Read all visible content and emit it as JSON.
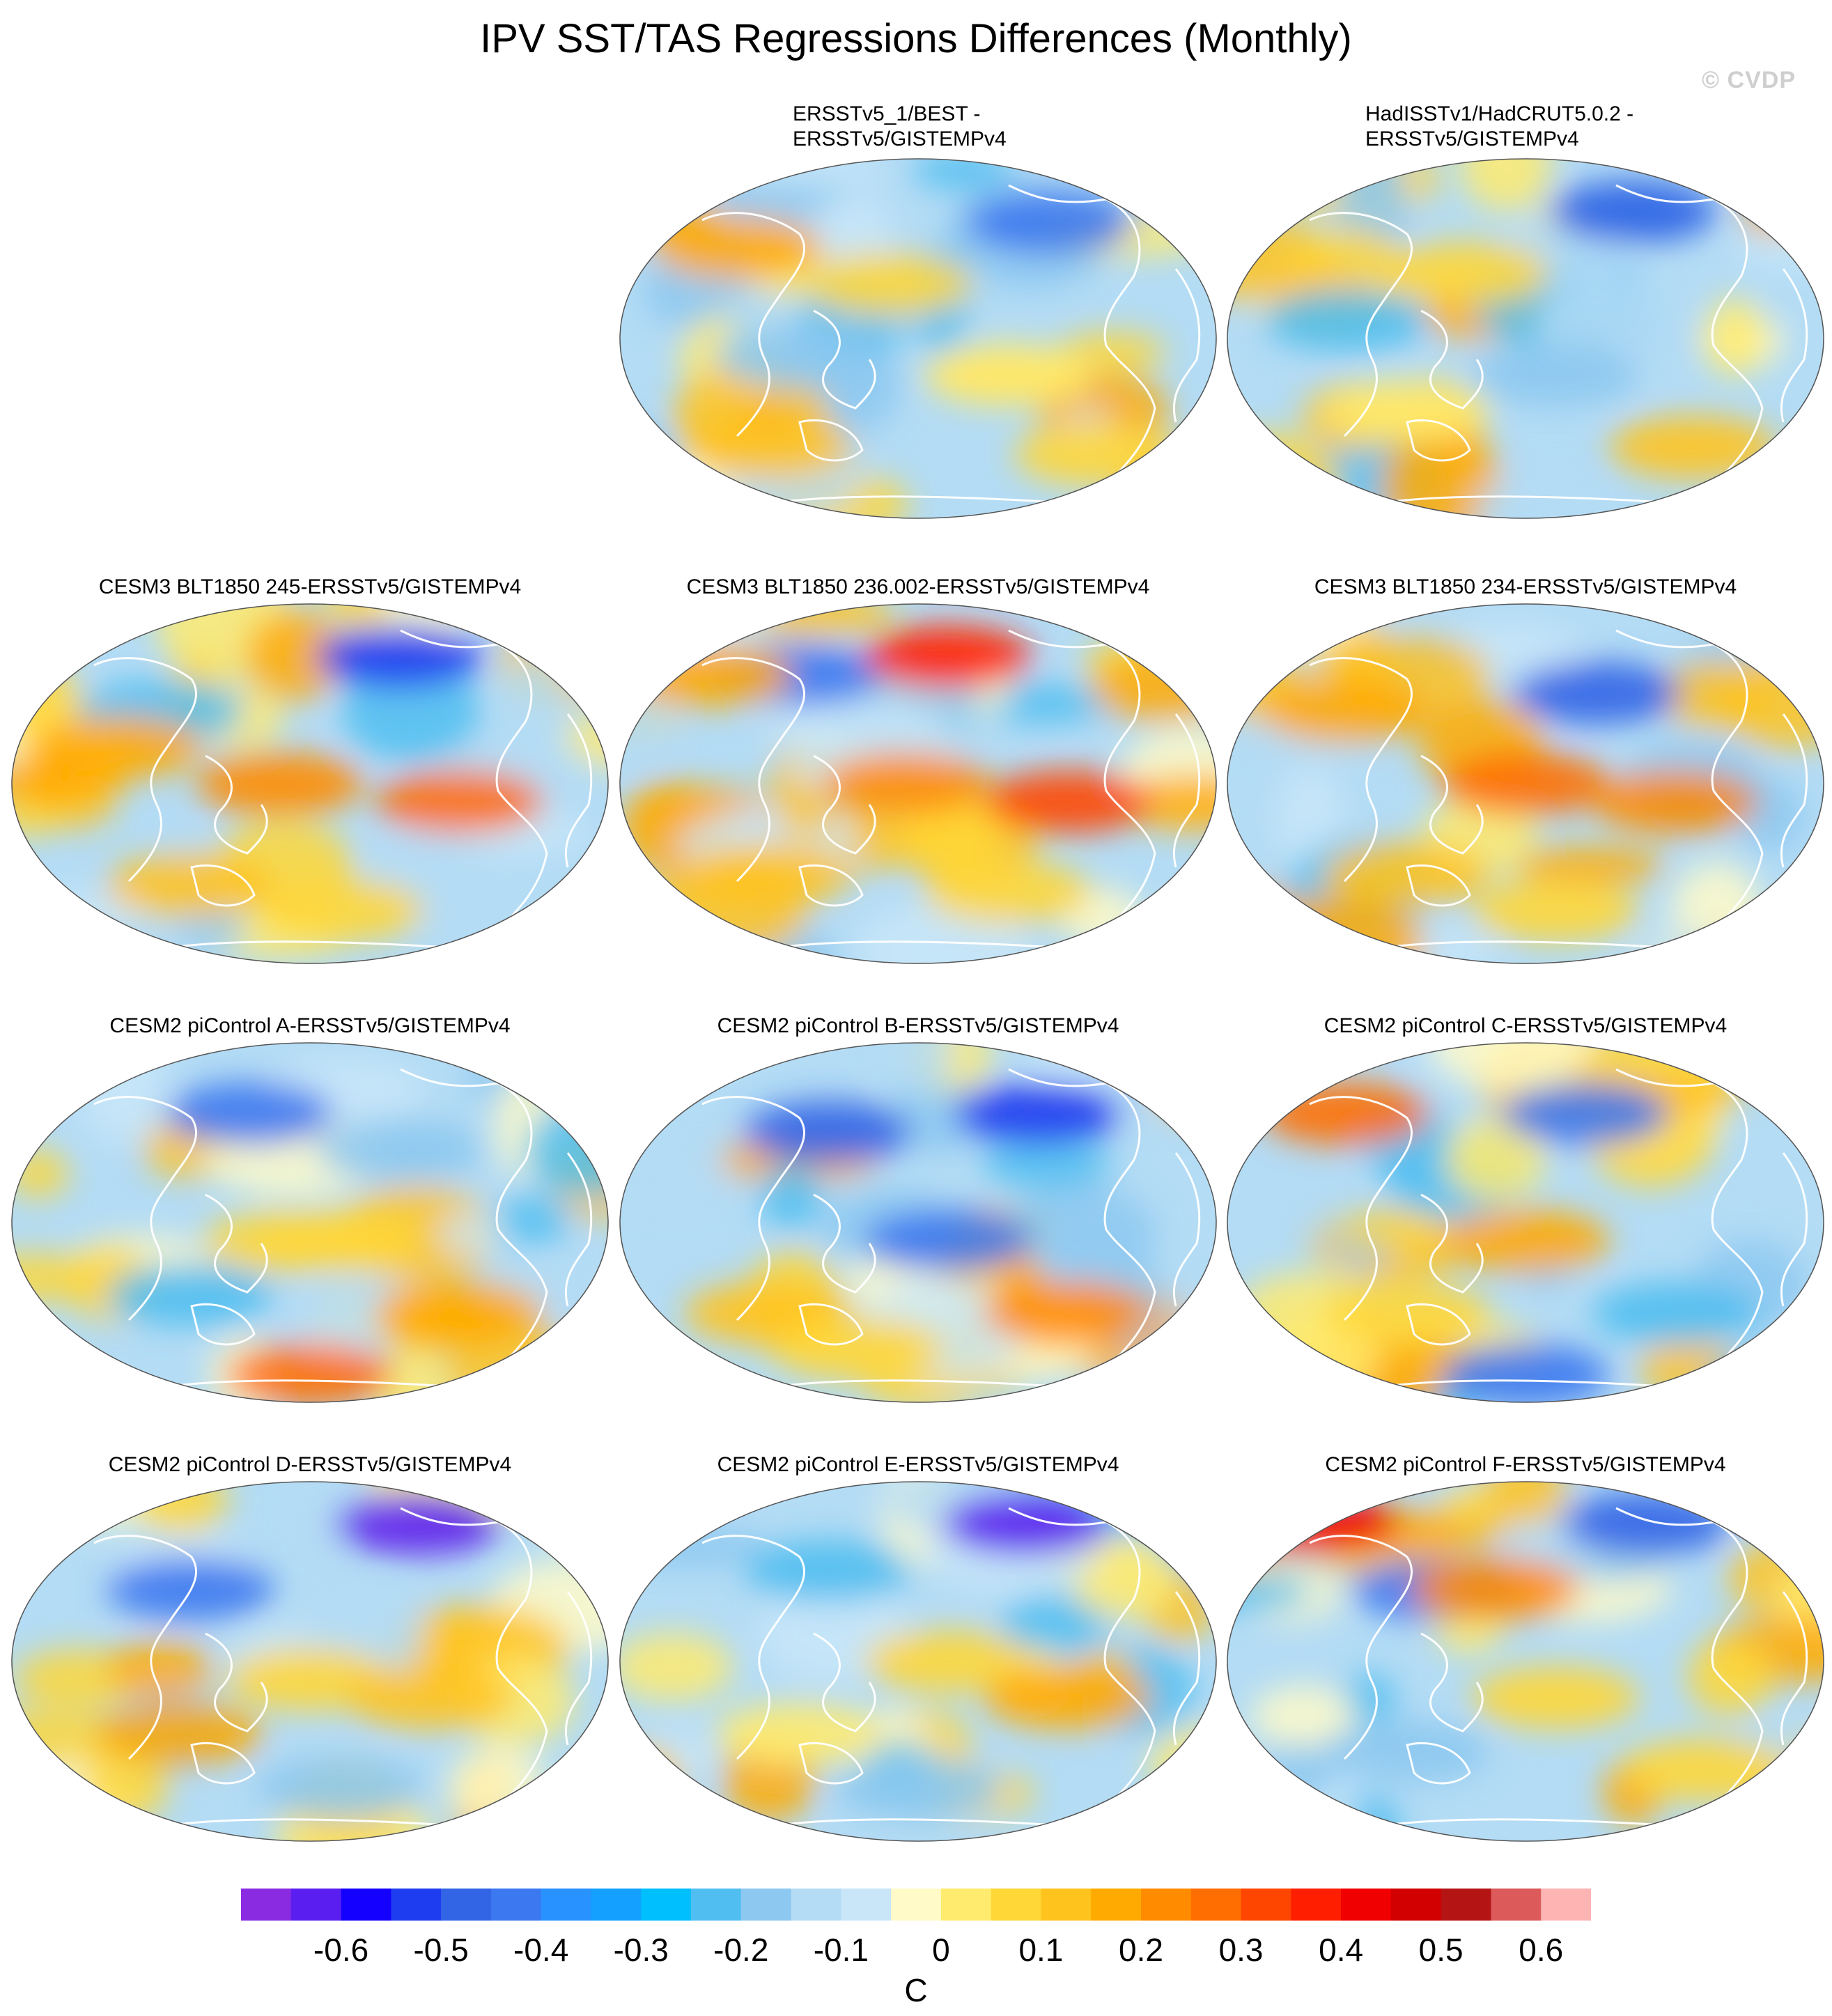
{
  "figure": {
    "title": "IPV SST/TAS Regressions Differences (Monthly)",
    "watermark": "© CVDP"
  },
  "panels": [
    {
      "id": "p1",
      "title_l1": "ERSSTv5_1/BEST -",
      "title_l2": "ERSSTv5/GISTEMPv4",
      "pattern": "obs1"
    },
    {
      "id": "p2",
      "title_l1": "HadISSTv1/HadCRUT5.0.2 -",
      "title_l2": "ERSSTv5/GISTEMPv4",
      "pattern": "obs2"
    },
    {
      "id": "p3",
      "title_l1": "CESM3 BLT1850 245-ERSSTv5/GISTEMPv4",
      "title_l2": "",
      "pattern": "cesm3a"
    },
    {
      "id": "p4",
      "title_l1": "CESM3 BLT1850 236.002-ERSSTv5/GISTEMPv4",
      "title_l2": "",
      "pattern": "cesm3b"
    },
    {
      "id": "p5",
      "title_l1": "CESM3 BLT1850 234-ERSSTv5/GISTEMPv4",
      "title_l2": "",
      "pattern": "cesm3c"
    },
    {
      "id": "p6",
      "title_l1": "CESM2 piControl A-ERSSTv5/GISTEMPv4",
      "title_l2": "",
      "pattern": "a"
    },
    {
      "id": "p7",
      "title_l1": "CESM2 piControl B-ERSSTv5/GISTEMPv4",
      "title_l2": "",
      "pattern": "b"
    },
    {
      "id": "p8",
      "title_l1": "CESM2 piControl C-ERSSTv5/GISTEMPv4",
      "title_l2": "",
      "pattern": "c"
    },
    {
      "id": "p9",
      "title_l1": "CESM2 piControl D-ERSSTv5/GISTEMPv4",
      "title_l2": "",
      "pattern": "d"
    },
    {
      "id": "p10",
      "title_l1": "CESM2 piControl E-ERSSTv5/GISTEMPv4",
      "title_l2": "",
      "pattern": "e"
    },
    {
      "id": "p11",
      "title_l1": "CESM2 piControl F-ERSSTv5/GISTEMPv4",
      "title_l2": "",
      "pattern": "f"
    }
  ],
  "colorbar": {
    "unit": "C",
    "colors": [
      "#8a2be2",
      "#5a1ef0",
      "#1400ff",
      "#1e3cf0",
      "#3264e6",
      "#3c78f0",
      "#2892ff",
      "#14a0ff",
      "#00bfff",
      "#50bef0",
      "#8cc8f0",
      "#b4dcf5",
      "#c8e6f8",
      "#fffac8",
      "#ffeb6e",
      "#ffd737",
      "#ffc31e",
      "#ffaa00",
      "#ff8c00",
      "#ff6e00",
      "#ff4600",
      "#ff1e00",
      "#f00000",
      "#d20000",
      "#b41414",
      "#dc5a5a",
      "#ffb4b4"
    ],
    "tick_labels": [
      "-0.6",
      "-0.5",
      "-0.4",
      "-0.3",
      "-0.2",
      "-0.1",
      "0",
      "0.1",
      "0.2",
      "0.3",
      "0.4",
      "0.5",
      "0.6"
    ]
  }
}
